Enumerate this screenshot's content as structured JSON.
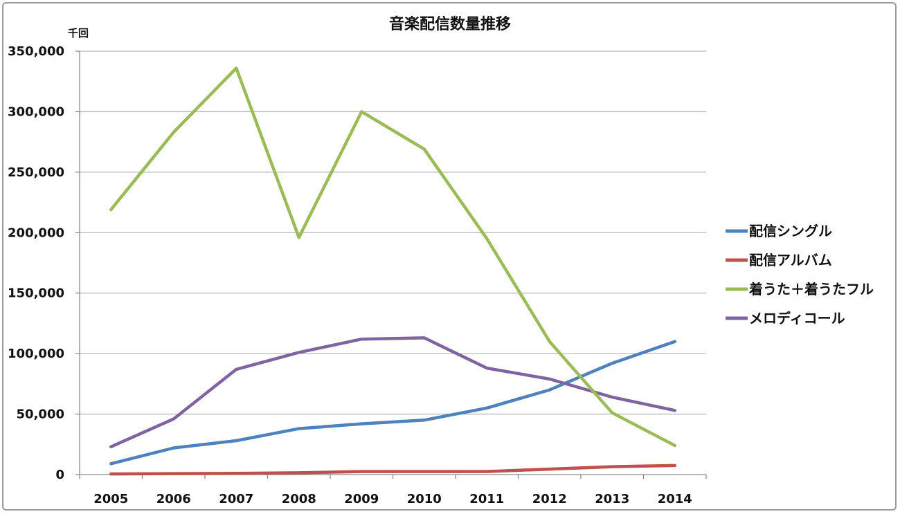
{
  "chart_data": {
    "type": "line",
    "title": "音楽配信数量推移",
    "unit_label": "千回",
    "xlabel": "",
    "ylabel": "",
    "ylim": [
      0,
      350000
    ],
    "y_ticks": [
      0,
      50000,
      100000,
      150000,
      200000,
      250000,
      300000,
      350000
    ],
    "y_tick_labels": [
      "0",
      "50,000",
      "100,000",
      "150,000",
      "200,000",
      "250,000",
      "300,000",
      "350,000"
    ],
    "categories": [
      "2005",
      "2006",
      "2007",
      "2008",
      "2009",
      "2010",
      "2011",
      "2012",
      "2013",
      "2014"
    ],
    "grid": true,
    "legend_position": "right",
    "series": [
      {
        "name": "配信シングル",
        "color": "#4f81bd",
        "values": [
          9000,
          22000,
          28000,
          38000,
          42000,
          45000,
          55000,
          70000,
          92000,
          110000
        ]
      },
      {
        "name": "配信アルバム",
        "color": "#c0504d",
        "values": [
          500,
          800,
          1000,
          1500,
          2500,
          2500,
          2500,
          4500,
          6500,
          7500
        ]
      },
      {
        "name": "着うた＋着うたフル",
        "color": "#9bbb59",
        "values": [
          219000,
          283000,
          336000,
          196000,
          300000,
          269000,
          195000,
          110000,
          51000,
          24000
        ]
      },
      {
        "name": "メロディコール",
        "color": "#8064a2",
        "values": [
          23000,
          46000,
          87000,
          101000,
          112000,
          113000,
          88000,
          79000,
          64000,
          53000
        ]
      }
    ]
  }
}
